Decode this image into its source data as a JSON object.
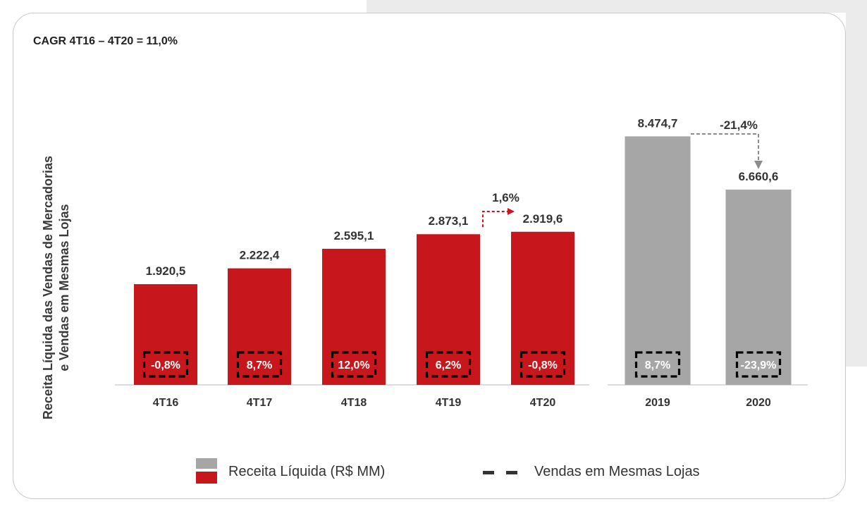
{
  "header": {
    "cagr": "CAGR 4T16 – 4T20 = 11,0%"
  },
  "colors": {
    "quarter_bar": "#c8161d",
    "annual_bar": "#a6a6a6",
    "dash_box": "#000000",
    "arrow_quarter": "#c8161d",
    "arrow_annual": "#8c8c8c"
  },
  "chart_data": {
    "type": "bar",
    "ylabel_line1": "Receita Líquida das Vendas de Mercadorias",
    "ylabel_line2": "e Vendas em Mesmas Lojas",
    "groups": [
      {
        "name": "quarterly",
        "color": "#c8161d",
        "categories": [
          "4T16",
          "4T17",
          "4T18",
          "4T19",
          "4T20"
        ],
        "values": [
          1920.5,
          2222.4,
          2595.1,
          2873.1,
          2919.6
        ],
        "value_labels": [
          "1.920,5",
          "2.222,4",
          "2.595,1",
          "2.873,1",
          "2.919,6"
        ],
        "sss_labels": [
          "-0,8%",
          "8,7%",
          "12,0%",
          "6,2%",
          "-0,8%"
        ],
        "sss_values": [
          -0.8,
          8.7,
          12.0,
          6.2,
          -0.8
        ],
        "change_label": "1,6%",
        "change_from": "4T19",
        "change_to": "4T20"
      },
      {
        "name": "annual",
        "color": "#a6a6a6",
        "categories": [
          "2019",
          "2020"
        ],
        "values": [
          8474.7,
          6660.6
        ],
        "value_labels": [
          "8.474,7",
          "6.660,6"
        ],
        "sss_labels": [
          "8,7%",
          "-23,9%"
        ],
        "sss_values": [
          8.7,
          -23.9
        ],
        "change_label": "-21,4%",
        "change_from": "2019",
        "change_to": "2020"
      }
    ],
    "legend": [
      {
        "label": "Receita Líquida (R$ MM)",
        "marker": "gray-red-swatch"
      },
      {
        "label": "Vendas em Mesmas Lojas",
        "marker": "black-dashes"
      }
    ],
    "legend_position": "bottom",
    "grid": false
  }
}
